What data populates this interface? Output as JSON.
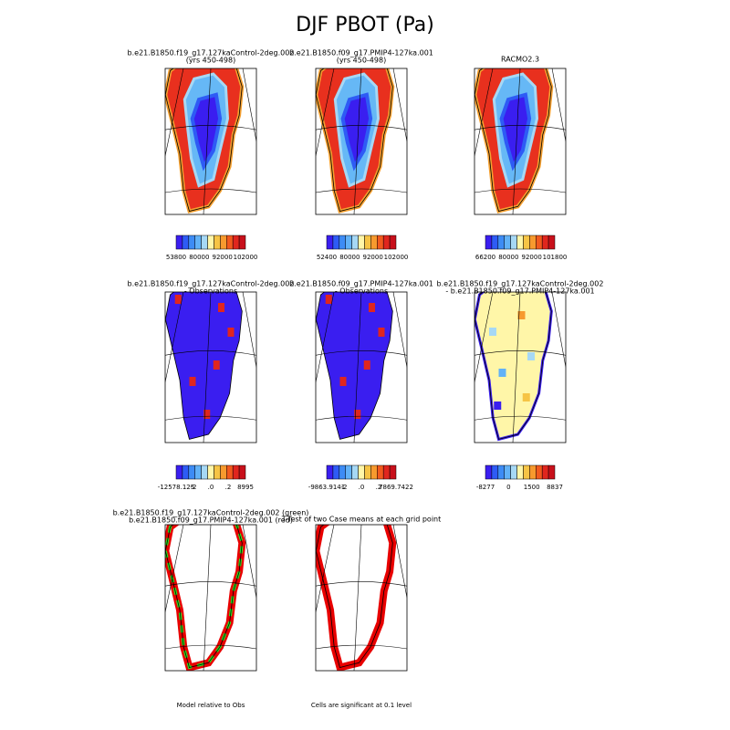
{
  "title": "DJF PBOT (Pa)",
  "panels": [
    {
      "title": [
        "b.e21.B1850.f19_g17.127kaControl-2deg.002",
        "(yrs 450-498)"
      ],
      "colorbar": [
        "53800",
        "80000",
        "92000",
        "102000"
      ]
    },
    {
      "title": [
        "b.e21.B1850.f09_g17.PMIP4-127ka.001",
        "(yrs 450-498)"
      ],
      "colorbar": [
        "52400",
        "80000",
        "92000",
        "102000"
      ]
    },
    {
      "title": [
        "RACMO2.3"
      ],
      "colorbar": [
        "66200",
        "80000",
        "92000",
        "101800"
      ]
    },
    {
      "title": [
        "b.e21.B1850.f19_g17.127kaControl-2deg.002",
        "- Observations"
      ],
      "colorbar": [
        "-12578.125",
        "-2",
        ".0",
        ".2",
        "8995"
      ]
    },
    {
      "title": [
        "b.e21.B1850.f09_g17.PMIP4-127ka.001",
        "- Observations"
      ],
      "colorbar": [
        "-9863.9141",
        "-2",
        ".0",
        ".2",
        "7869.7422"
      ]
    },
    {
      "title": [
        "b.e21.B1850.f19_g17.127kaControl-2deg.002",
        "- b.e21.B1850.f09_g17.PMIP4-127ka.001"
      ],
      "colorbar": [
        "-8277",
        "0",
        "1500",
        "8837"
      ]
    },
    {
      "title": [
        "b.e21.B1850.f19_g17.127kaControl-2deg.002 (green)",
        "b.e21.B1850.f09_g17.PMIP4-127ka.001 (red)"
      ],
      "note": "Model relative to Obs"
    },
    {
      "title": [
        "T-Test of two Case means at each grid point"
      ],
      "note": "Cells are significant at 0.1 level"
    }
  ]
}
